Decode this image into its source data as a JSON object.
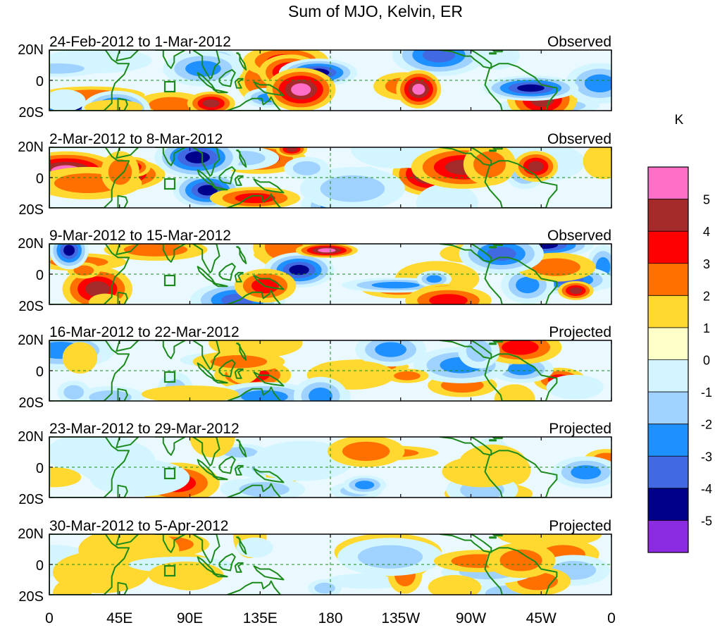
{
  "title": "Sum of MJO, Kelvin, ER",
  "y_tick_labels": [
    "20N",
    "0",
    "20S"
  ],
  "x_tick_labels": [
    "0",
    "45E",
    "90E",
    "135E",
    "180",
    "135W",
    "90W",
    "45W",
    "0"
  ],
  "panels": [
    {
      "date_range": "24-Feb-2012 to 1-Mar-2012",
      "status": "Observed",
      "strength": 1.0
    },
    {
      "date_range": "2-Mar-2012 to 8-Mar-2012",
      "status": "Observed",
      "strength": 1.0
    },
    {
      "date_range": "9-Mar-2012 to 15-Mar-2012",
      "status": "Observed",
      "strength": 1.0
    },
    {
      "date_range": "16-Mar-2012 to 22-Mar-2012",
      "status": "Projected",
      "strength": 0.6
    },
    {
      "date_range": "23-Mar-2012 to 29-Mar-2012",
      "status": "Projected",
      "strength": 0.5
    },
    {
      "date_range": "30-Mar-2012 to 5-Apr-2012",
      "status": "Projected",
      "strength": 0.45
    }
  ],
  "colorbar": {
    "unit": "K",
    "tick_labels": [
      "5",
      "4",
      "3",
      "2",
      "1",
      "0",
      "-1",
      "-2",
      "-3",
      "-4",
      "-5"
    ],
    "colors": [
      "#ff6ec7",
      "#a52a2a",
      "#ff0000",
      "#ff7000",
      "#ffd830",
      "#ffffc8",
      "#d2f5ff",
      "#a0d2ff",
      "#1e90ff",
      "#4169e1",
      "#00008b",
      "#8b2be2"
    ]
  },
  "palette": {
    "coast": "#1b8a1b",
    "equator": "#1b8a1b"
  }
}
